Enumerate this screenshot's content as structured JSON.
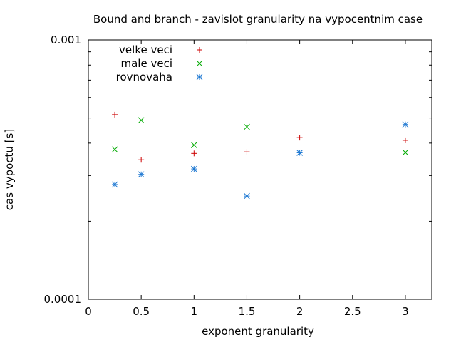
{
  "chart_data": {
    "type": "scatter",
    "title": "Bound and branch - zavislot granularity na vypocentnim case",
    "xlabel": "exponent granularity",
    "ylabel": "cas vypoctu [s]",
    "x_scale": "linear",
    "y_scale": "log",
    "xlim": [
      0,
      3.25
    ],
    "ylim": [
      0.0001,
      0.001
    ],
    "x_ticks": [
      0,
      0.5,
      1,
      1.5,
      2,
      2.5,
      3
    ],
    "x_tick_labels": [
      "0",
      "0.5",
      "1",
      "1.5",
      "2",
      "2.5",
      "3"
    ],
    "y_ticks": [
      0.0001,
      0.001
    ],
    "y_tick_labels": [
      "0.0001",
      "0.001"
    ],
    "grid": false,
    "legend_position": "top-left",
    "series": [
      {
        "name": "velke veci",
        "marker": "plus",
        "color": "#cc0000",
        "points": [
          [
            0.25,
            0.000515
          ],
          [
            0.5,
            0.000345
          ],
          [
            1,
            0.000365
          ],
          [
            1.5,
            0.00037
          ],
          [
            2,
            0.00042
          ],
          [
            3,
            0.00041
          ]
        ]
      },
      {
        "name": "male veci",
        "marker": "cross",
        "color": "#00aa00",
        "points": [
          [
            0.25,
            0.000378
          ],
          [
            0.5,
            0.00049
          ],
          [
            1,
            0.000393
          ],
          [
            1.5,
            0.000462
          ],
          [
            3,
            0.000368
          ]
        ]
      },
      {
        "name": "rovnovaha",
        "marker": "star",
        "color": "#1e78d2",
        "points": [
          [
            0.25,
            0.000277
          ],
          [
            0.5,
            0.000303
          ],
          [
            1,
            0.000318
          ],
          [
            1.5,
            0.00025
          ],
          [
            2,
            0.000367
          ],
          [
            3,
            0.000472
          ]
        ]
      }
    ]
  }
}
